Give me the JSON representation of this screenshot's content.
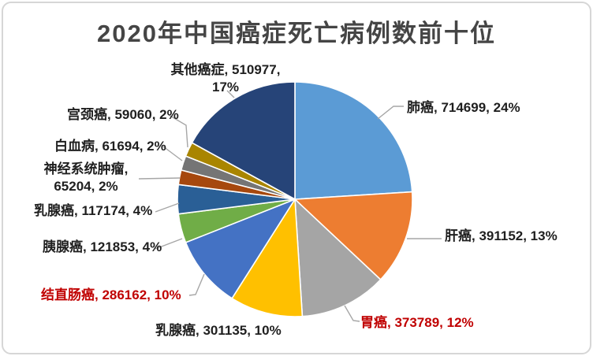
{
  "title": "2020年中国癌症死亡病例数前十位",
  "colors": {
    "title_text": "#454545",
    "label_black": "#1F1F1F",
    "label_red": "#C00000",
    "leader_line": "#A6A6A6",
    "slice_border": "#FFFFFF",
    "background": "#FFFFFF",
    "frame_border": "#D6D6D6"
  },
  "chart_data": {
    "type": "pie",
    "title": "2020年中国癌症死亡病例数前十位",
    "start_angle_deg": 0,
    "direction": "clockwise",
    "legend": "none",
    "label_format": "name, value, percent",
    "slices": [
      {
        "id": "lung",
        "name": "肺癌",
        "value": 714699,
        "pct": 24,
        "color": "#5B9BD5",
        "label": "肺癌, 714699, 24%",
        "label_color": "#1F1F1F"
      },
      {
        "id": "liver",
        "name": "肝癌",
        "value": 391152,
        "pct": 13,
        "color": "#ED7D31",
        "label": "肝癌, 391152, 13%",
        "label_color": "#1F1F1F"
      },
      {
        "id": "stomach",
        "name": "胃癌",
        "value": 373789,
        "pct": 12,
        "color": "#A5A5A5",
        "label": "胃癌, 373789, 12%",
        "label_color": "#C00000"
      },
      {
        "id": "breast-a",
        "name": "乳腺癌",
        "value": 301135,
        "pct": 10,
        "color": "#FFC000",
        "label": "乳腺癌, 301135, 10%",
        "label_color": "#1F1F1F"
      },
      {
        "id": "colorectal",
        "name": "结直肠癌",
        "value": 286162,
        "pct": 10,
        "color": "#4472C4",
        "label": "结直肠癌, 286162, 10%",
        "label_color": "#C00000"
      },
      {
        "id": "pancreatic",
        "name": "胰腺癌",
        "value": 121853,
        "pct": 4,
        "color": "#70AD47",
        "label": "胰腺癌, 121853, 4%",
        "label_color": "#1F1F1F"
      },
      {
        "id": "breast-b",
        "name": "乳腺癌",
        "value": 117174,
        "pct": 4,
        "color": "#2A5F96",
        "label": "乳腺癌, 117174, 4%",
        "label_color": "#1F1F1F"
      },
      {
        "id": "nervous-system",
        "name": "神经系统肿瘤",
        "value": 65204,
        "pct": 2,
        "color": "#A6480E",
        "label_lines": [
          "神经系统肿瘤,",
          "65204, 2%"
        ],
        "label_color": "#1F1F1F"
      },
      {
        "id": "leukemia",
        "name": "白血病",
        "value": 61694,
        "pct": 2,
        "color": "#757575",
        "label": "白血病, 61694, 2%",
        "label_color": "#1F1F1F"
      },
      {
        "id": "cervical",
        "name": "宫颈癌",
        "value": 59060,
        "pct": 2,
        "color": "#A98500",
        "label": "宫颈癌, 59060, 2%",
        "label_color": "#1F1F1F"
      },
      {
        "id": "other",
        "name": "其他癌症",
        "value": 510977,
        "pct": 17,
        "color": "#264478",
        "label_lines": [
          "其他癌症, 510977,",
          "17%"
        ],
        "label_color": "#1F1F1F"
      }
    ]
  }
}
